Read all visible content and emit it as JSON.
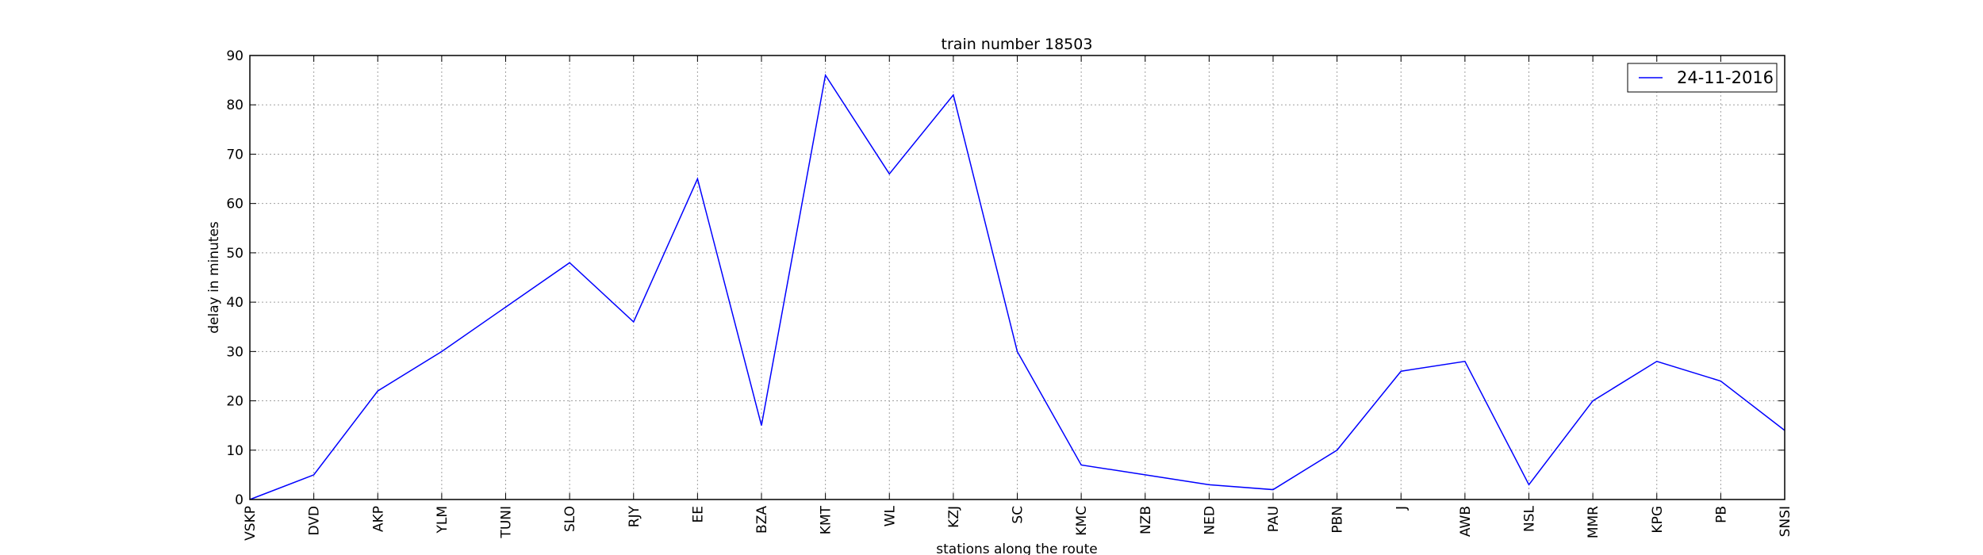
{
  "chart_data": {
    "type": "line",
    "title": "train number 18503",
    "xlabel": "stations along the route",
    "ylabel": "delay in minutes",
    "categories": [
      "VSKP",
      "DVD",
      "AKP",
      "YLM",
      "TUNI",
      "SLO",
      "RJY",
      "EE",
      "BZA",
      "KMT",
      "WL",
      "KZJ",
      "SC",
      "KMC",
      "NZB",
      "NED",
      "PAU",
      "PBN",
      "J",
      "AWB",
      "NSL",
      "MMR",
      "KPG",
      "PB",
      "SNSI"
    ],
    "series": [
      {
        "name": "24-11-2016",
        "color": "#0000ff",
        "values": [
          0,
          5,
          22,
          30,
          39,
          48,
          36,
          65,
          15,
          86,
          66,
          82,
          30,
          7,
          5,
          3,
          2,
          10,
          26,
          28,
          3,
          20,
          28,
          24,
          14
        ]
      }
    ],
    "ylim": [
      0,
      90
    ],
    "yticks": [
      0,
      10,
      20,
      30,
      40,
      50,
      60,
      70,
      80,
      90
    ],
    "grid": true,
    "legend_position": "top-right"
  }
}
